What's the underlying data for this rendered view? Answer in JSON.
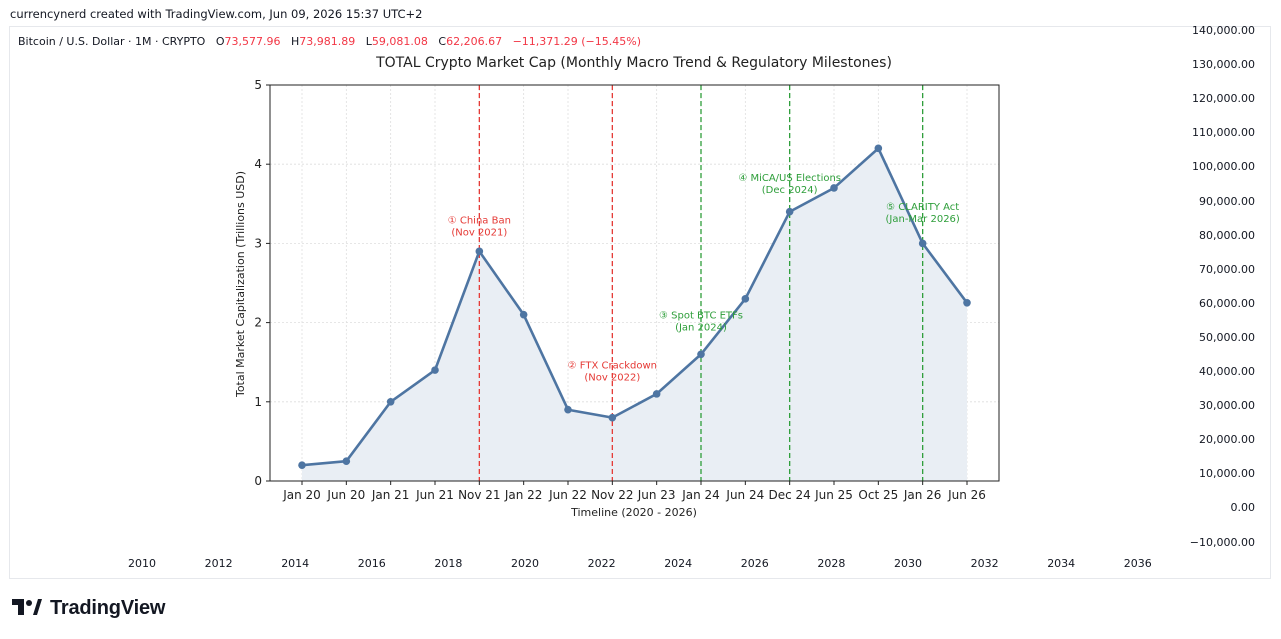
{
  "header": {
    "attribution": "currencynerd created with TradingView.com, Jun 09, 2026 15:37 UTC+2"
  },
  "legend": {
    "symbol": "Bitcoin / U.S. Dollar · 1M · CRYPTO",
    "o_label": "O",
    "o_value": "73,577.96",
    "h_label": "H",
    "h_value": "73,981.89",
    "l_label": "L",
    "l_value": "59,081.08",
    "c_label": "C",
    "c_value": "62,206.67",
    "change": "−11,371.29 (−15.45%)",
    "down_color": "#f23645"
  },
  "price_scale": {
    "labels": [
      "140,000.00",
      "130,000.00",
      "120,000.00",
      "110,000.00",
      "100,000.00",
      "90,000.00",
      "80,000.00",
      "70,000.00",
      "60,000.00",
      "50,000.00",
      "40,000.00",
      "30,000.00",
      "20,000.00",
      "10,000.00",
      "0.00",
      "−10,000.00"
    ]
  },
  "time_scale": {
    "labels": [
      "2010",
      "2012",
      "2014",
      "2016",
      "2018",
      "2020",
      "2022",
      "2024",
      "2026",
      "2028",
      "2030",
      "2032",
      "2034",
      "2036"
    ]
  },
  "brand": {
    "name": "TradingView",
    "icon": "tradingview-logo-icon"
  },
  "chart_data": {
    "type": "line",
    "title": "TOTAL Crypto Market Cap (Monthly Macro Trend & Regulatory Milestones)",
    "xlabel": "Timeline (2020 - 2026)",
    "ylabel": "Total Market Capitalization (Trillions USD)",
    "ylim": [
      0,
      5
    ],
    "yticks": [
      0,
      1,
      2,
      3,
      4,
      5
    ],
    "grid": true,
    "area_fill": true,
    "line_color": "#4e75a2",
    "fill_color": "#e9eef4",
    "categories": [
      "Jan 20",
      "Jun 20",
      "Jan 21",
      "Jun 21",
      "Nov 21",
      "Jan 22",
      "Jun 22",
      "Nov 22",
      "Jun 23",
      "Jan 24",
      "Jun 24",
      "Dec 24",
      "Jun 25",
      "Oct 25",
      "Jan 26",
      "Jun 26"
    ],
    "series": [
      {
        "values": [
          0.2,
          0.25,
          1.0,
          1.4,
          2.9,
          2.1,
          0.9,
          0.8,
          1.1,
          1.6,
          2.3,
          3.4,
          3.7,
          4.2,
          3.0,
          2.25
        ]
      }
    ],
    "events": [
      {
        "category": "Nov 21",
        "line1": "① China Ban",
        "line2": "(Nov 2021)",
        "color": "#e53935",
        "label_y": 3.25
      },
      {
        "category": "Nov 22",
        "line1": "② FTX Crackdown",
        "line2": "(Nov 2022)",
        "color": "#e53935",
        "label_y": 1.42
      },
      {
        "category": "Jan 24",
        "line1": "③ Spot BTC ETFs",
        "line2": "(Jan 2024)",
        "color": "#2e9e3a",
        "label_y": 2.05
      },
      {
        "category": "Dec 24",
        "line1": "④ MiCA/US Elections",
        "line2": "(Dec 2024)",
        "color": "#2e9e3a",
        "label_y": 3.79
      },
      {
        "category": "Jan 26",
        "line1": "⑤ CLARITY Act",
        "line2": "(Jan-Mar 2026)",
        "color": "#2e9e3a",
        "label_y": 3.42
      }
    ]
  }
}
